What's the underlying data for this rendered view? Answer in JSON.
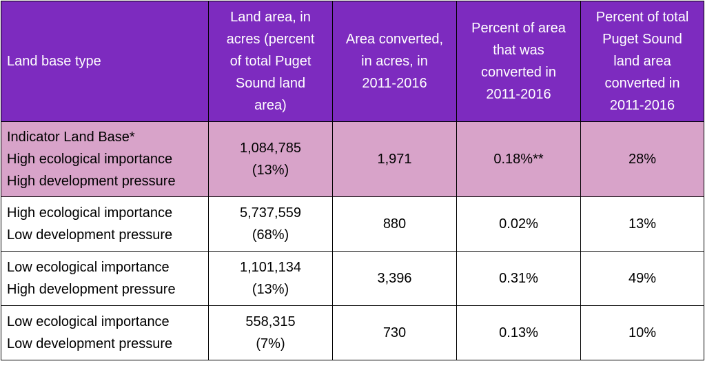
{
  "table": {
    "headers": [
      [
        "Land base type"
      ],
      [
        "Land area, in",
        "acres (percent",
        "of total Puget",
        "Sound land",
        "area)"
      ],
      [
        "Area converted,",
        "in acres, in",
        "2011-2016"
      ],
      [
        "Percent of area",
        "that was",
        "converted in",
        "2011-2016"
      ],
      [
        "Percent of total",
        "Puget Sound",
        "land area",
        "converted in",
        "2011-2016"
      ]
    ],
    "rows": [
      {
        "land_base": [
          "Indicator Land Base*",
          "High ecological importance",
          "High development pressure"
        ],
        "land_area": [
          "1,084,785",
          "(13%)"
        ],
        "area_converted": "1,971",
        "percent_converted": "0.18%**",
        "percent_of_total": "28%"
      },
      {
        "land_base": [
          "High ecological importance",
          "Low development pressure"
        ],
        "land_area": [
          "5,737,559",
          "(68%)"
        ],
        "area_converted": "880",
        "percent_converted": "0.02%",
        "percent_of_total": "13%"
      },
      {
        "land_base": [
          "Low ecological importance",
          "High development pressure"
        ],
        "land_area": [
          "1,101,134",
          "(13%)"
        ],
        "area_converted": "3,396",
        "percent_converted": "0.31%",
        "percent_of_total": "49%"
      },
      {
        "land_base": [
          "Low ecological importance",
          "Low development pressure"
        ],
        "land_area": [
          "558,315",
          "(7%)"
        ],
        "area_converted": "730",
        "percent_converted": "0.13%",
        "percent_of_total": "10%"
      }
    ]
  },
  "colors": {
    "header_bg": "#7d2bbf",
    "header_text": "#ffffff",
    "highlight_row_bg": "#d8a3c9",
    "row_bg": "#ffffff",
    "border": "#000000"
  }
}
